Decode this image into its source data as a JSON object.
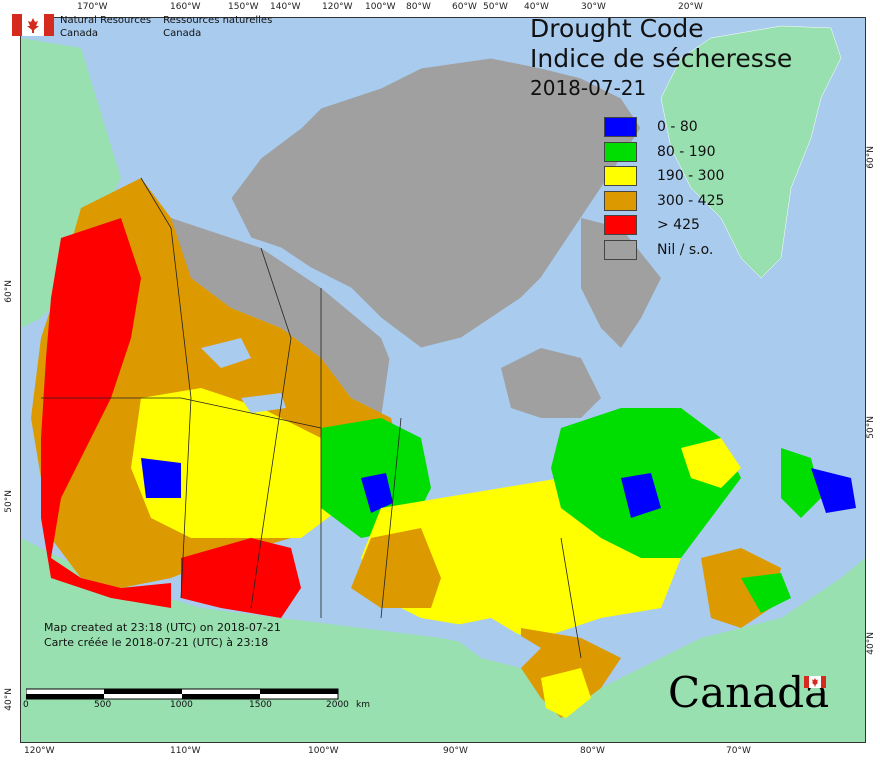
{
  "title_en": "Drought Code",
  "title_fr": "Indice de sécheresse",
  "date": "2018-07-21",
  "legend": [
    {
      "label": "0 - 80",
      "color": "#0000ff"
    },
    {
      "label": "80 - 190",
      "color": "#00dd00"
    },
    {
      "label": "190 - 300",
      "color": "#ffff00"
    },
    {
      "label": "300 - 425",
      "color": "#dd9900"
    },
    {
      "label": "> 425",
      "color": "#ff0000"
    },
    {
      "label": "Nil / s.o.",
      "color": "#a0a0a0"
    }
  ],
  "agency": {
    "en_line1": "Natural Resources",
    "en_line2": "Canada",
    "fr_line1": "Ressources naturelles",
    "fr_line2": "Canada"
  },
  "created": {
    "en": "Map created at 23:18 (UTC) on 2018-07-21",
    "fr": "Carte créée le 2018-07-21 (UTC) à 23:18"
  },
  "scale_labels": [
    "0",
    "500",
    "1000",
    "1500",
    "2000",
    "km"
  ],
  "wordmark": "Canada",
  "top_ticks": [
    "170°W",
    "160°W",
    "150°W",
    "140°W",
    "120°W",
    "100°W",
    "80°W",
    "60°W",
    "50°W",
    "40°W",
    "30°W",
    "20°W"
  ],
  "bottom_ticks": [
    "120°W",
    "110°W",
    "100°W",
    "90°W",
    "80°W",
    "70°W"
  ],
  "left_ticks": [
    "60°N",
    "50°N",
    "40°N"
  ],
  "right_ticks": [
    "60°N",
    "50°N",
    "40°N"
  ],
  "colors": {
    "ocean": "#a9cbee",
    "foreign_land": "#98e0b0",
    "nil": "#a0a0a0"
  }
}
